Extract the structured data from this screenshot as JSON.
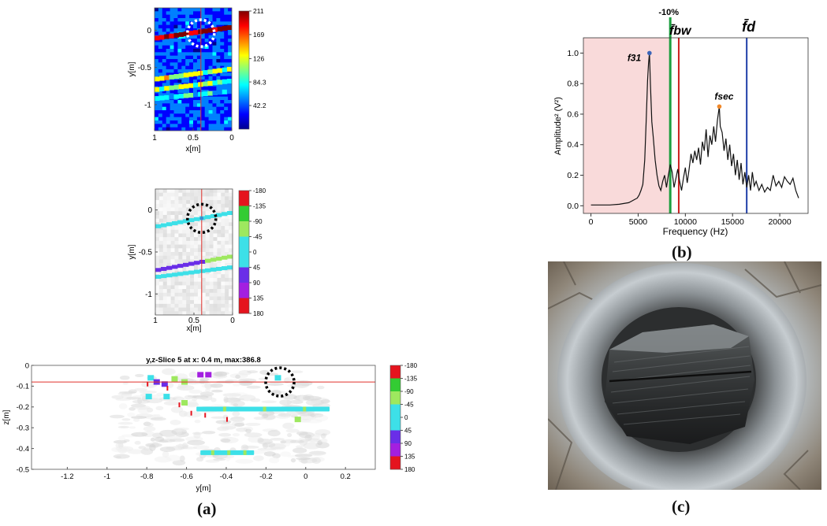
{
  "panel_labels": {
    "a": "(a)",
    "b": "(b)",
    "c": "(c)"
  },
  "colors": {
    "jet": [
      "#00008f",
      "#0000ff",
      "#0080ff",
      "#00ffff",
      "#80ff80",
      "#ffff00",
      "#ff8000",
      "#ff0000",
      "#800000"
    ],
    "phase": [
      "#e5141e",
      "#33cc33",
      "#9ee85f",
      "#3de0e8",
      "#3de0e8",
      "#6a2ee8",
      "#a31fe0",
      "#e5141e"
    ],
    "crosshair": "#e0302a",
    "spectrum_shade": "#f9dada",
    "line_green": "#1b9e3e",
    "line_red": "#cc1f1f",
    "line_blue": "#1f3ea8",
    "peak_blue": "#3b64b8",
    "peak_orange": "#f0882a"
  },
  "chart_data": [
    {
      "id": "amplitude-map",
      "type": "heatmap",
      "title": "",
      "xlabel": "x[m]",
      "ylabel": "y[m]",
      "xlim": [
        1,
        0
      ],
      "ylim": [
        -1.35,
        0.3
      ],
      "x_ticks": [
        {
          "v": 1,
          "label": "1"
        },
        {
          "v": 0.5,
          "label": "0.5"
        },
        {
          "v": 0,
          "label": "0"
        }
      ],
      "y_ticks": [
        {
          "v": 0,
          "label": "0"
        },
        {
          "v": -0.5,
          "label": "-0.5"
        },
        {
          "v": -1,
          "label": "-1"
        }
      ],
      "colorbar_ticks": [
        "211",
        "169",
        "126",
        "84.3",
        "42.2"
      ],
      "colorbar_range": [
        0,
        211
      ],
      "bands": [
        {
          "y_at_x1": -0.11,
          "y_at_x0": 0.04,
          "intensity": 0.92
        },
        {
          "y_at_x1": -0.66,
          "y_at_x0": -0.52,
          "intensity": 0.55
        },
        {
          "y_at_x1": -0.8,
          "y_at_x0": -0.68,
          "intensity": 0.5
        },
        {
          "y_at_x1": -0.92,
          "y_at_x0": -0.82,
          "intensity": 0.4
        }
      ],
      "crosshair_x": 0.4,
      "marker": {
        "x": 0.4,
        "y": -0.04
      }
    },
    {
      "id": "phase-map",
      "type": "heatmap",
      "title": "",
      "xlabel": "x[m]",
      "ylabel": "y[m]",
      "xlim": [
        1,
        0
      ],
      "ylim": [
        -1.25,
        0.25
      ],
      "x_ticks": [
        {
          "v": 1,
          "label": "1"
        },
        {
          "v": 0.5,
          "label": "0.5"
        },
        {
          "v": 0,
          "label": "0"
        }
      ],
      "y_ticks": [
        {
          "v": 0,
          "label": "0"
        },
        {
          "v": -0.5,
          "label": "-0.5"
        },
        {
          "v": -1,
          "label": "-1"
        }
      ],
      "colorbar_ticks": [
        "-180",
        "-135",
        "-90",
        "-45",
        "0",
        "45",
        "90",
        "135",
        "180"
      ],
      "bands": [
        {
          "y_at_x1": -0.2,
          "y_at_x0": -0.03,
          "phase": "cyan"
        },
        {
          "y_at_x1": -0.72,
          "y_at_x0": -0.55,
          "phase": "purple"
        },
        {
          "y_at_x1": -0.8,
          "y_at_x0": -0.68,
          "phase": "cyan"
        }
      ],
      "crosshair_x": 0.4,
      "marker": {
        "x": 0.4,
        "y": -0.1
      }
    },
    {
      "id": "yz-slice",
      "type": "heatmap",
      "title": "y,z-Slice 5 at x: 0.4 m, max:386.8",
      "xlabel": "y[m]",
      "ylabel": "z[m]",
      "xlim": [
        -1.38,
        0.35
      ],
      "ylim": [
        -0.5,
        0
      ],
      "x_ticks": [
        {
          "v": -1.2,
          "label": "-1.2"
        },
        {
          "v": -1,
          "label": "-1"
        },
        {
          "v": -0.8,
          "label": "-0.8"
        },
        {
          "v": -0.6,
          "label": "-0.6"
        },
        {
          "v": -0.4,
          "label": "-0.4"
        },
        {
          "v": -0.2,
          "label": "-0.2"
        },
        {
          "v": 0,
          "label": "0"
        },
        {
          "v": 0.2,
          "label": "0.2"
        }
      ],
      "y_ticks": [
        {
          "v": 0,
          "label": "0"
        },
        {
          "v": -0.1,
          "label": "-0.1"
        },
        {
          "v": -0.2,
          "label": "-0.2"
        },
        {
          "v": -0.3,
          "label": "-0.3"
        },
        {
          "v": -0.4,
          "label": "-0.4"
        },
        {
          "v": -0.5,
          "label": "-0.5"
        }
      ],
      "colorbar_ticks": [
        "-180",
        "-135",
        "-90",
        "-45",
        "0",
        "45",
        "90",
        "135",
        "180"
      ],
      "crosshair_z": -0.08,
      "marker": {
        "y": -0.13,
        "z": -0.08
      },
      "segments": [
        {
          "y0": -0.55,
          "y1": 0.12,
          "z": -0.21,
          "phase": "cyan"
        },
        {
          "y0": -0.53,
          "y1": -0.26,
          "z": -0.42,
          "phase": "cyan"
        }
      ],
      "blobs": [
        {
          "y": -0.78,
          "z": -0.06,
          "phase": "cyan"
        },
        {
          "y": -0.75,
          "z": -0.08,
          "phase": "purple"
        },
        {
          "y": -0.71,
          "z": -0.09,
          "phase": "purple"
        },
        {
          "y": -0.66,
          "z": -0.065,
          "phase": "lightgreen"
        },
        {
          "y": -0.61,
          "z": -0.08,
          "phase": "lightgreen"
        },
        {
          "y": -0.53,
          "z": -0.045,
          "phase": "violet"
        },
        {
          "y": -0.49,
          "z": -0.045,
          "phase": "violet"
        },
        {
          "y": -0.79,
          "z": -0.15,
          "phase": "cyan"
        },
        {
          "y": -0.7,
          "z": -0.15,
          "phase": "cyan"
        },
        {
          "y": -0.61,
          "z": -0.18,
          "phase": "lightgreen"
        },
        {
          "y": -0.04,
          "z": -0.26,
          "phase": "lightgreen"
        },
        {
          "y": -0.14,
          "z": -0.06,
          "phase": "cyan"
        }
      ]
    },
    {
      "id": "spectrum",
      "type": "line",
      "title": "",
      "xlabel": "Frequency (Hz)",
      "ylabel": "Amplitude² (V²)",
      "xlim": [
        -800,
        23000
      ],
      "ylim": [
        -0.05,
        1.1
      ],
      "x_ticks": [
        0,
        5000,
        10000,
        15000,
        20000
      ],
      "y_ticks": [
        {
          "v": 0,
          "label": "0.0"
        },
        {
          "v": 0.2,
          "label": "0.2"
        },
        {
          "v": 0.4,
          "label": "0.4"
        },
        {
          "v": 0.6,
          "label": "0.6"
        },
        {
          "v": 0.8,
          "label": "0.8"
        },
        {
          "v": 1.0,
          "label": "1.0"
        }
      ],
      "shaded_region": [
        -800,
        8400
      ],
      "vlines": [
        {
          "x": 8400,
          "name": "green",
          "label": "-10%"
        },
        {
          "x": 9300,
          "name": "red",
          "label": "f̄bw"
        },
        {
          "x": 16500,
          "name": "blue",
          "label": "f̄d"
        }
      ],
      "peaks": [
        {
          "x": 6200,
          "y": 1.0,
          "label": "f31"
        },
        {
          "x": 13600,
          "y": 0.65,
          "label": "fsec"
        }
      ],
      "series": [
        {
          "x": [
            0,
            1000,
            2000,
            3000,
            3500,
            4000,
            4300,
            4600,
            4900,
            5100,
            5300,
            5500,
            5700,
            5850,
            6000,
            6100,
            6200,
            6300,
            6450,
            6600,
            6800,
            7000,
            7200,
            7400,
            7600,
            7800,
            8000,
            8200,
            8400,
            8600,
            8800,
            9000,
            9200,
            9400,
            9600,
            9800,
            10000,
            10200,
            10400,
            10600,
            10800,
            11000,
            11200,
            11400,
            11600,
            11800,
            12000,
            12200,
            12400,
            12600,
            12800,
            13000,
            13200,
            13400,
            13600,
            13700,
            13900,
            14100,
            14300,
            14500,
            14700,
            14900,
            15100,
            15300,
            15500,
            15700,
            15900,
            16100,
            16300,
            16500,
            16700,
            16900,
            17100,
            17300,
            17500,
            17800,
            18100,
            18400,
            18700,
            19000,
            19300,
            19600,
            19900,
            20200,
            20500,
            20800,
            21100,
            21400,
            21700,
            22000
          ],
          "y": [
            0.005,
            0.005,
            0.005,
            0.01,
            0.015,
            0.02,
            0.03,
            0.04,
            0.05,
            0.07,
            0.1,
            0.14,
            0.3,
            0.55,
            0.82,
            0.93,
            1.0,
            0.8,
            0.55,
            0.45,
            0.3,
            0.2,
            0.13,
            0.1,
            0.16,
            0.2,
            0.12,
            0.2,
            0.27,
            0.22,
            0.12,
            0.18,
            0.24,
            0.16,
            0.1,
            0.18,
            0.25,
            0.15,
            0.24,
            0.34,
            0.28,
            0.36,
            0.3,
            0.38,
            0.27,
            0.42,
            0.36,
            0.5,
            0.32,
            0.46,
            0.4,
            0.52,
            0.42,
            0.56,
            0.65,
            0.52,
            0.48,
            0.36,
            0.44,
            0.3,
            0.4,
            0.26,
            0.34,
            0.2,
            0.3,
            0.17,
            0.28,
            0.14,
            0.22,
            0.12,
            0.2,
            0.1,
            0.22,
            0.13,
            0.16,
            0.1,
            0.14,
            0.09,
            0.12,
            0.1,
            0.2,
            0.13,
            0.16,
            0.12,
            0.19,
            0.16,
            0.14,
            0.18,
            0.1,
            0.05
          ]
        }
      ]
    }
  ]
}
